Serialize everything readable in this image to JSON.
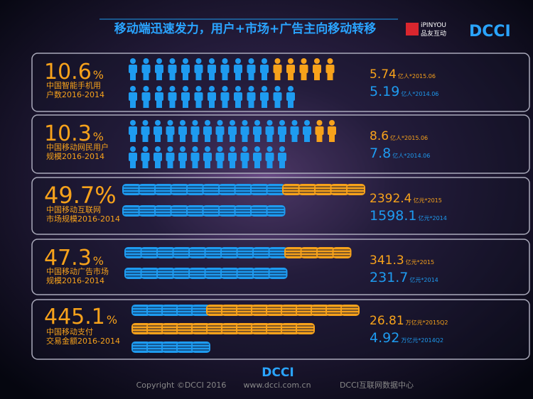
{
  "header": {
    "title": "移动端迅速发力，用户+市场+广告主向移动转移",
    "logo_en": "iPINYOU",
    "logo_cn": "品友互动",
    "logo_dcci": "DCCI"
  },
  "rows": [
    {
      "growth": "10.6",
      "unit": "%",
      "label_lines": [
        "中国智能手机用",
        "户数2016-2014"
      ],
      "values": [
        {
          "value": "5.74",
          "note": "亿人*2015.06"
        },
        {
          "value": "5.19",
          "note": "亿人*2014.06"
        }
      ]
    },
    {
      "growth": "10.3",
      "unit": "%",
      "label_lines": [
        "中国移动网民用户",
        "规模2016-2014"
      ],
      "values": [
        {
          "value": "8.6",
          "note": "亿人*2015.06"
        },
        {
          "value": "7.8",
          "note": "亿人*2014.06"
        }
      ]
    },
    {
      "growth": "49.7%",
      "unit": "",
      "label_lines": [
        "中国移动互联网",
        "市场规模2016-2014"
      ],
      "values": [
        {
          "value": "2392.4",
          "note": "亿元*2015"
        },
        {
          "value": "1598.1",
          "note": "亿元*2014"
        }
      ]
    },
    {
      "growth": "47.3",
      "unit": "%",
      "label_lines": [
        "中国移动广告市场",
        "规模2016-2014"
      ],
      "values": [
        {
          "value": "341.3",
          "note": "亿元*2015"
        },
        {
          "value": "231.7",
          "note": "亿元*2014"
        }
      ]
    },
    {
      "growth": "445.1",
      "unit": "%",
      "label_lines": [
        "中国移动支付",
        "交易金额2016-2014"
      ],
      "values": [
        {
          "value": "26.81",
          "note": "万亿元*2015Q2"
        },
        {
          "value": "4.92",
          "note": "万亿元*2014Q2"
        }
      ]
    }
  ],
  "footer": {
    "logo": "DCCI",
    "copyright": "Copyright ©DCCI 2016",
    "site": "www.dcci.com.cn",
    "org": "DCCI互联网数据中心"
  }
}
